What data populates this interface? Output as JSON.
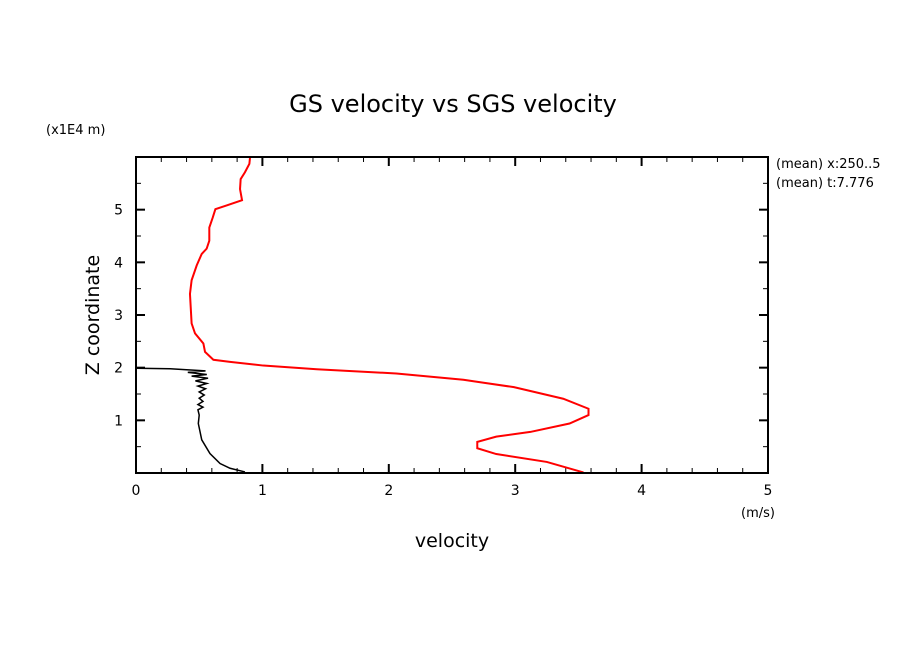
{
  "chart_data": {
    "type": "line",
    "title": "GS velocity vs SGS velocity",
    "xlabel": "velocity",
    "xunits": "(m/s)",
    "ylabel": "Z coordinate",
    "yunits": "(x1E4 m)",
    "xlim": [
      0,
      5
    ],
    "ylim": [
      0,
      6
    ],
    "xticks": [
      "0",
      "1",
      "2",
      "3",
      "4",
      "5"
    ],
    "yticks": [
      "1",
      "2",
      "3",
      "4",
      "5"
    ],
    "annotations": [
      "(mean) x:250..5",
      "(mean) t:7.776"
    ],
    "grid": false,
    "series": [
      {
        "name": "GS velocity",
        "color": "#ff0000",
        "points": [
          [
            3.54,
            0.01
          ],
          [
            3.25,
            0.21
          ],
          [
            2.85,
            0.36
          ],
          [
            2.7,
            0.47
          ],
          [
            2.7,
            0.59
          ],
          [
            2.85,
            0.69
          ],
          [
            3.12,
            0.78
          ],
          [
            3.43,
            0.94
          ],
          [
            3.58,
            1.1
          ],
          [
            3.58,
            1.22
          ],
          [
            3.38,
            1.41
          ],
          [
            2.99,
            1.63
          ],
          [
            2.59,
            1.77
          ],
          [
            2.06,
            1.89
          ],
          [
            1.43,
            1.97
          ],
          [
            1.007,
            2.04
          ],
          [
            0.744,
            2.11
          ],
          [
            0.612,
            2.15
          ],
          [
            0.546,
            2.3
          ],
          [
            0.533,
            2.46
          ],
          [
            0.467,
            2.65
          ],
          [
            0.44,
            2.84
          ],
          [
            0.427,
            3.4
          ],
          [
            0.44,
            3.66
          ],
          [
            0.48,
            3.94
          ],
          [
            0.52,
            4.16
          ],
          [
            0.559,
            4.26
          ],
          [
            0.58,
            4.41
          ],
          [
            0.58,
            4.66
          ],
          [
            0.607,
            4.85
          ],
          [
            0.628,
            5.01
          ],
          [
            0.717,
            5.08
          ],
          [
            0.839,
            5.18
          ],
          [
            0.823,
            5.39
          ],
          [
            0.828,
            5.58
          ],
          [
            0.862,
            5.71
          ],
          [
            0.897,
            5.87
          ],
          [
            0.902,
            5.99
          ]
        ]
      },
      {
        "name": "SGS velocity",
        "color": "#000000",
        "points": [
          [
            0.862,
            0.02
          ],
          [
            0.744,
            0.09
          ],
          [
            0.665,
            0.18
          ],
          [
            0.585,
            0.37
          ],
          [
            0.52,
            0.63
          ],
          [
            0.493,
            0.94
          ],
          [
            0.5,
            1.1
          ],
          [
            0.49,
            1.2
          ],
          [
            0.53,
            1.25
          ],
          [
            0.49,
            1.3
          ],
          [
            0.53,
            1.36
          ],
          [
            0.5,
            1.42
          ],
          [
            0.54,
            1.48
          ],
          [
            0.5,
            1.54
          ],
          [
            0.55,
            1.6
          ],
          [
            0.49,
            1.65
          ],
          [
            0.56,
            1.7
          ],
          [
            0.47,
            1.75
          ],
          [
            0.57,
            1.8
          ],
          [
            0.44,
            1.84
          ],
          [
            0.56,
            1.87
          ],
          [
            0.41,
            1.91
          ],
          [
            0.55,
            1.94
          ],
          [
            0.4,
            1.96
          ],
          [
            0.27,
            1.98
          ],
          [
            0.005,
            1.99
          ]
        ]
      }
    ]
  }
}
